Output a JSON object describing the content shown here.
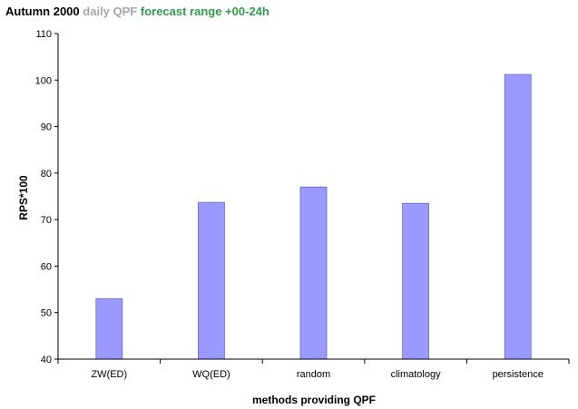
{
  "colors": {
    "title_part1": "#000000",
    "title_part2": "#a6a6a6",
    "title_part3": "#2e9c4a",
    "bar_fill": "#9999ff",
    "bar_stroke": "#6666cc",
    "axis": "#000000"
  },
  "chart_data": {
    "type": "bar",
    "title_parts": [
      "Autumn 2000",
      "daily QPF",
      "forecast range +00-24h"
    ],
    "xlabel": "methods providing QPF",
    "ylabel": "RPS*100",
    "ylim": [
      40,
      110
    ],
    "yticks": [
      40,
      50,
      60,
      70,
      80,
      90,
      100,
      110
    ],
    "grid": false,
    "legend": "none",
    "categories": [
      "ZW(ED)",
      "WQ(ED)",
      "random",
      "climatology",
      "persistence"
    ],
    "values": [
      53,
      73.7,
      77,
      73.5,
      101.2
    ]
  }
}
